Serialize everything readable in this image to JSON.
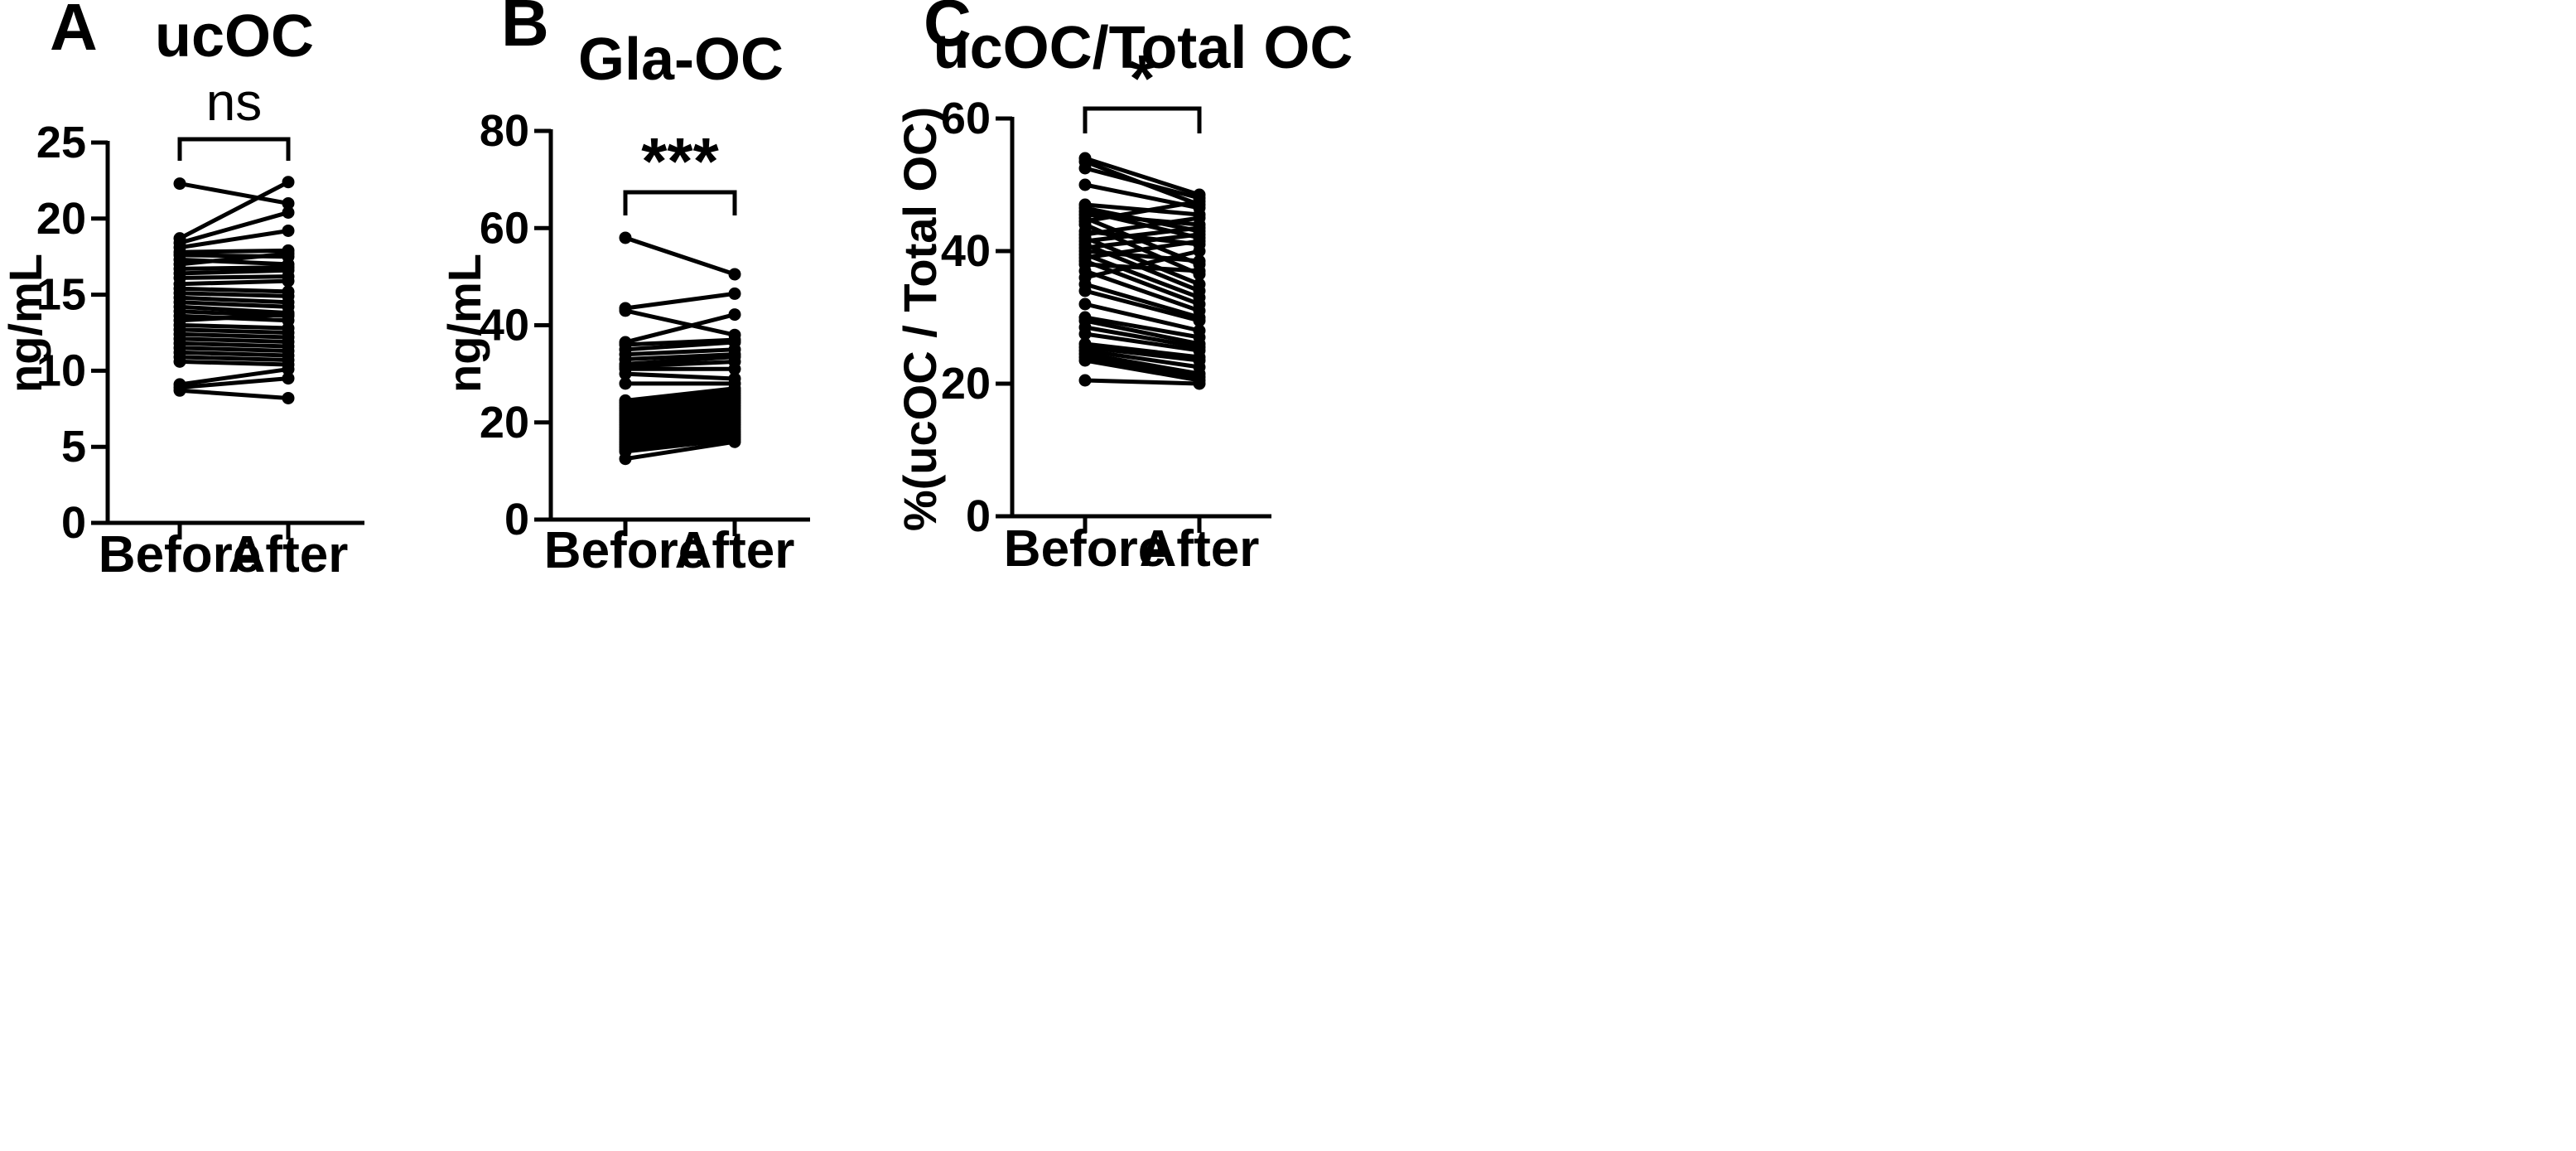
{
  "colors": {
    "ink": "#000000",
    "background": "#ffffff"
  },
  "chart_data": [
    {
      "type": "paired-dot-line",
      "letter": "A",
      "title": "ucOC",
      "ylabel": "ng/mL",
      "ylim": [
        0,
        25
      ],
      "yticks": [
        0,
        5,
        10,
        15,
        20,
        25
      ],
      "categories": [
        "Before",
        "After"
      ],
      "significance": "ns",
      "pairs": [
        [
          22.3,
          21.0
        ],
        [
          18.7,
          22.4
        ],
        [
          18.4,
          20.4
        ],
        [
          18.1,
          19.2
        ],
        [
          17.8,
          17.9
        ],
        [
          17.6,
          17.5
        ],
        [
          17.3,
          17.0
        ],
        [
          17.0,
          17.7
        ],
        [
          16.7,
          16.8
        ],
        [
          16.4,
          16.6
        ],
        [
          16.1,
          16.2
        ],
        [
          15.7,
          15.9
        ],
        [
          15.4,
          15.2
        ],
        [
          15.1,
          14.9
        ],
        [
          14.8,
          14.5
        ],
        [
          14.5,
          14.2
        ],
        [
          14.2,
          13.8
        ],
        [
          13.9,
          13.6
        ],
        [
          13.6,
          13.3
        ],
        [
          13.3,
          13.7
        ],
        [
          13.0,
          12.8
        ],
        [
          12.7,
          12.5
        ],
        [
          12.4,
          12.2
        ],
        [
          12.1,
          11.9
        ],
        [
          11.8,
          11.6
        ],
        [
          11.5,
          11.3
        ],
        [
          11.2,
          11.0
        ],
        [
          10.9,
          10.7
        ],
        [
          10.6,
          10.4
        ],
        [
          9.1,
          10.1
        ],
        [
          8.9,
          9.5
        ],
        [
          8.7,
          8.2
        ]
      ]
    },
    {
      "type": "paired-dot-line",
      "letter": "B",
      "title": "Gla-OC",
      "ylabel": "ng/mL",
      "ylim": [
        0,
        80
      ],
      "yticks": [
        0,
        20,
        40,
        60,
        80
      ],
      "categories": [
        "Before",
        "After"
      ],
      "significance": "***",
      "pairs": [
        [
          58.0,
          50.5
        ],
        [
          43.5,
          46.5
        ],
        [
          43.0,
          38.0
        ],
        [
          36.5,
          42.2
        ],
        [
          36.0,
          37.0
        ],
        [
          35.0,
          36.5
        ],
        [
          34.0,
          35.0
        ],
        [
          33.0,
          34.0
        ],
        [
          32.0,
          33.5
        ],
        [
          31.5,
          32.5
        ],
        [
          31.0,
          31.0
        ],
        [
          30.0,
          29.0
        ],
        [
          28.0,
          28.0
        ],
        [
          24.5,
          27.0
        ],
        [
          24.0,
          26.5
        ],
        [
          23.5,
          26.0
        ],
        [
          23.0,
          25.5
        ],
        [
          22.5,
          25.0
        ],
        [
          22.0,
          24.5
        ],
        [
          21.5,
          24.0
        ],
        [
          21.0,
          23.5
        ],
        [
          20.5,
          23.0
        ],
        [
          20.0,
          22.5
        ],
        [
          19.5,
          22.0
        ],
        [
          19.0,
          21.5
        ],
        [
          18.5,
          21.0
        ],
        [
          18.0,
          20.5
        ],
        [
          17.5,
          20.0
        ],
        [
          17.0,
          19.5
        ],
        [
          16.5,
          19.0
        ],
        [
          16.0,
          18.5
        ],
        [
          15.5,
          18.0
        ],
        [
          15.0,
          17.5
        ],
        [
          14.5,
          17.0
        ],
        [
          14.0,
          16.5
        ],
        [
          12.5,
          16.0
        ]
      ]
    },
    {
      "type": "paired-dot-line",
      "letter": "C",
      "title": "ucOC/Total  OC",
      "ylabel": "%(ucOC / Total OC)",
      "ylim": [
        0,
        60
      ],
      "yticks": [
        0,
        20,
        40,
        60
      ],
      "categories": [
        "Before",
        "After"
      ],
      "significance": "*",
      "pairs": [
        [
          54.0,
          48.5
        ],
        [
          53.5,
          47.0
        ],
        [
          52.5,
          48.0
        ],
        [
          50.0,
          46.5
        ],
        [
          47.0,
          45.5
        ],
        [
          46.5,
          43.0
        ],
        [
          46.0,
          42.0
        ],
        [
          45.5,
          44.0
        ],
        [
          45.0,
          38.0
        ],
        [
          44.5,
          47.5
        ],
        [
          44.0,
          36.5
        ],
        [
          43.0,
          41.0
        ],
        [
          42.5,
          45.0
        ],
        [
          42.0,
          35.0
        ],
        [
          41.5,
          43.5
        ],
        [
          41.0,
          34.0
        ],
        [
          40.5,
          42.5
        ],
        [
          40.0,
          38.5
        ],
        [
          39.5,
          33.0
        ],
        [
          39.0,
          41.5
        ],
        [
          38.5,
          32.0
        ],
        [
          38.0,
          37.0
        ],
        [
          37.0,
          31.0
        ],
        [
          36.0,
          40.0
        ],
        [
          35.0,
          30.0
        ],
        [
          34.0,
          29.5
        ],
        [
          32.0,
          28.0
        ],
        [
          30.0,
          27.0
        ],
        [
          29.5,
          26.0
        ],
        [
          28.5,
          25.5
        ],
        [
          27.5,
          25.0
        ],
        [
          26.0,
          24.0
        ],
        [
          25.5,
          23.5
        ],
        [
          25.0,
          22.5
        ],
        [
          24.5,
          21.5
        ],
        [
          24.0,
          21.0
        ],
        [
          23.5,
          20.5
        ],
        [
          20.5,
          20.0
        ]
      ]
    }
  ]
}
